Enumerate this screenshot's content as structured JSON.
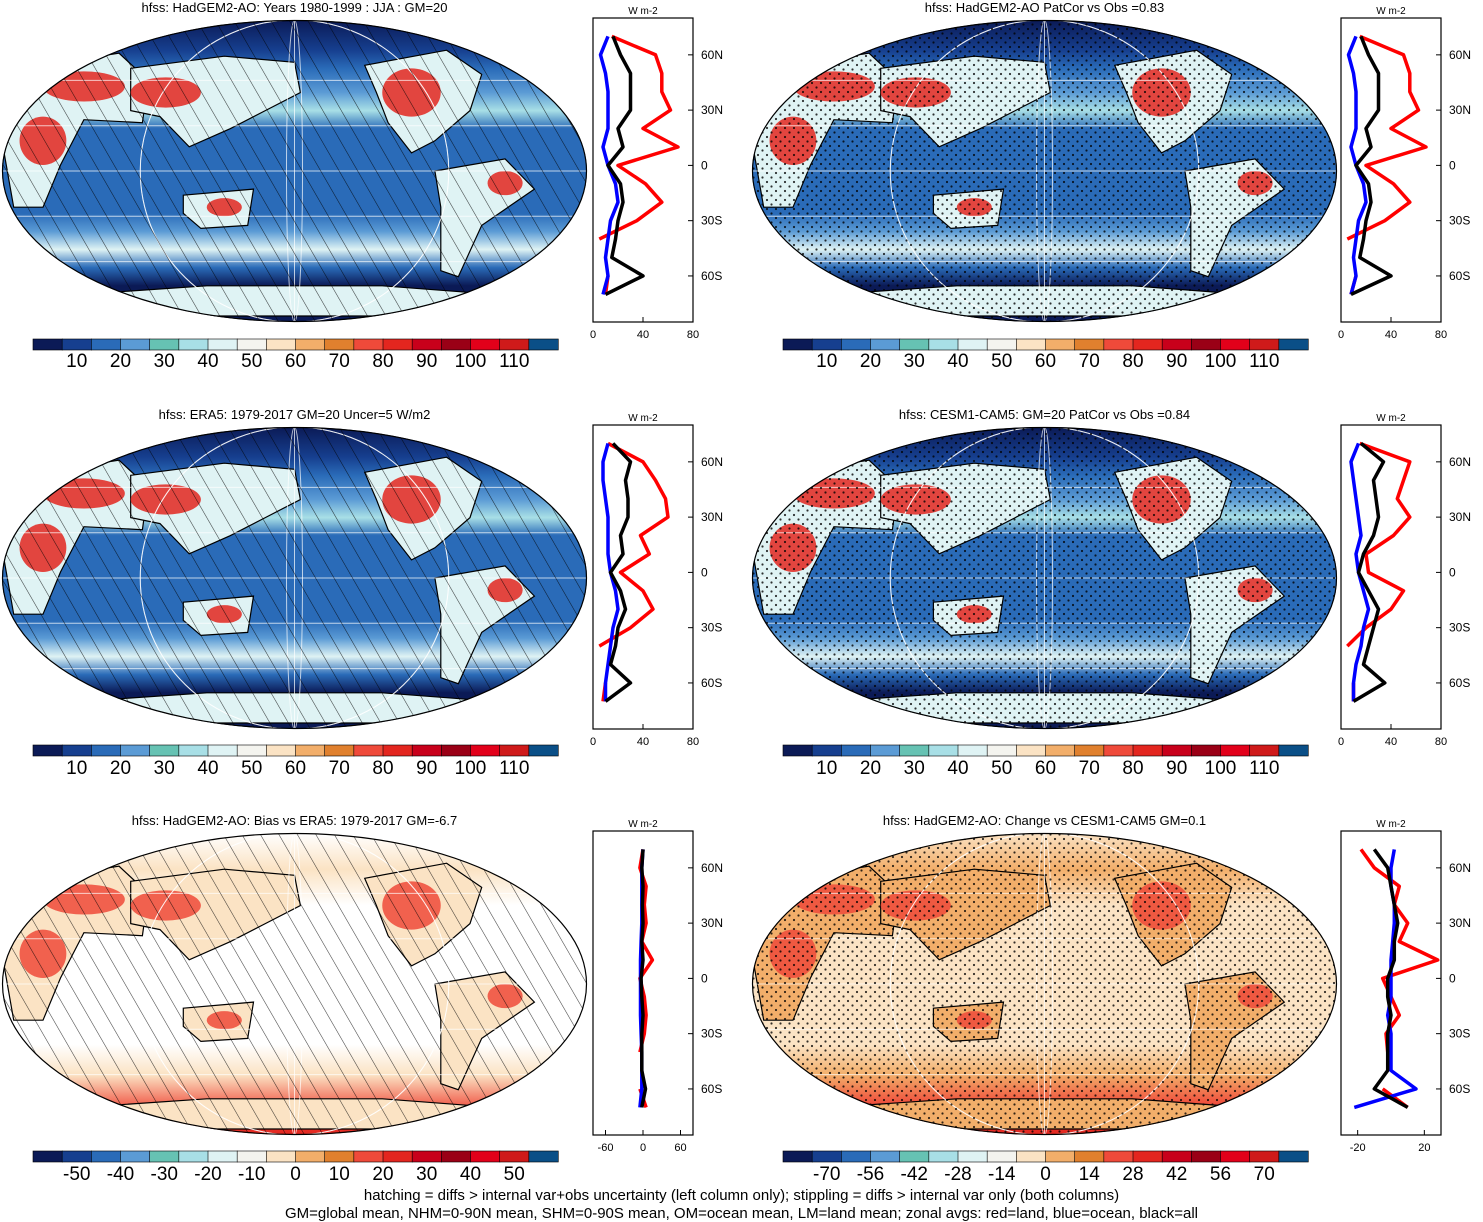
{
  "colors": {
    "abs_scale": [
      "#0b1a56",
      "#163f8f",
      "#2a6bb8",
      "#5b9bd5",
      "#66c2b3",
      "#a8dfe6",
      "#dff3f4",
      "#f4f4ef",
      "#fbe3c4",
      "#f2ae6a",
      "#e0802e",
      "#ef4a3a",
      "#e3261f",
      "#c8001b",
      "#9a0016",
      "#e2001a",
      "#cf1a1a",
      "#0a4f87"
    ],
    "diff_scale": [
      "#0b1a56",
      "#163f8f",
      "#2a6bb8",
      "#5b9bd5",
      "#66c2b3",
      "#a8dfe6",
      "#dff3f4",
      "#f4f4ef",
      "#fbe3c4",
      "#f2ae6a",
      "#e0802e",
      "#ef4a3a",
      "#e3261f",
      "#c8001b",
      "#9a0016",
      "#e2001a",
      "#cf1a1a",
      "#0a4f87"
    ],
    "land_line": "#ff0000",
    "ocean_line": "#0000ff",
    "all_line": "#000000"
  },
  "chart_data": [
    {
      "type": "map",
      "title": "hfss: HadGEM2-AO: Years 1980-1999 : JJA : GM=20",
      "colorbar": {
        "labels": [
          "10",
          "20",
          "30",
          "40",
          "50",
          "60",
          "70",
          "80",
          "90",
          "100",
          "110"
        ]
      },
      "zonal": {
        "unit": "W m-2",
        "x_ticks": [
          "0",
          "40",
          "80"
        ],
        "xlim": [
          0,
          80
        ],
        "y_ticks": [
          "60N",
          "30N",
          "0",
          "30S",
          "60S"
        ],
        "lat": [
          -80,
          -70,
          -60,
          -50,
          -40,
          -30,
          -20,
          -10,
          0,
          10,
          20,
          30,
          40,
          50,
          60,
          70,
          80
        ],
        "land": [
          null,
          10,
          12,
          null,
          5,
          35,
          55,
          42,
          20,
          68,
          40,
          62,
          55,
          55,
          50,
          15,
          null
        ],
        "ocean": [
          null,
          8,
          12,
          10,
          12,
          14,
          20,
          18,
          12,
          8,
          12,
          12,
          12,
          10,
          6,
          12,
          null
        ],
        "all": [
          null,
          10,
          40,
          15,
          18,
          20,
          24,
          22,
          12,
          24,
          20,
          30,
          30,
          30,
          22,
          16,
          null
        ]
      }
    },
    {
      "type": "map",
      "title": "hfss: HadGEM2-AO PatCor vs Obs =0.83",
      "colorbar": {
        "labels": [
          "10",
          "20",
          "30",
          "40",
          "50",
          "60",
          "70",
          "80",
          "90",
          "100",
          "110"
        ]
      },
      "zonal": {
        "unit": "W m-2",
        "x_ticks": [
          "0",
          "40",
          "80"
        ],
        "xlim": [
          0,
          80
        ],
        "y_ticks": [
          "60N",
          "30N",
          "0",
          "30S",
          "60S"
        ],
        "lat": [
          -80,
          -70,
          -60,
          -50,
          -40,
          -30,
          -20,
          -10,
          0,
          10,
          20,
          30,
          40,
          50,
          60,
          70,
          80
        ],
        "land": [
          null,
          8,
          12,
          null,
          5,
          35,
          55,
          42,
          20,
          68,
          40,
          62,
          55,
          55,
          50,
          15,
          null
        ],
        "ocean": [
          null,
          8,
          12,
          10,
          12,
          14,
          20,
          18,
          12,
          8,
          12,
          12,
          12,
          10,
          6,
          12,
          null
        ],
        "all": [
          null,
          8,
          40,
          15,
          18,
          20,
          24,
          22,
          12,
          24,
          20,
          30,
          30,
          30,
          22,
          16,
          null
        ]
      }
    },
    {
      "type": "map",
      "title": "hfss: ERA5: 1979-2017 GM=20 Uncer=5 W/m2",
      "colorbar": {
        "labels": [
          "10",
          "20",
          "30",
          "40",
          "50",
          "60",
          "70",
          "80",
          "90",
          "100",
          "110"
        ]
      },
      "zonal": {
        "unit": "W m-2",
        "x_ticks": [
          "0",
          "40",
          "80"
        ],
        "xlim": [
          0,
          80
        ],
        "y_ticks": [
          "60N",
          "30N",
          "0",
          "30S",
          "60S"
        ],
        "lat": [
          -80,
          -70,
          -60,
          -50,
          -40,
          -30,
          -20,
          -10,
          0,
          10,
          20,
          30,
          40,
          50,
          60,
          70,
          80
        ],
        "land": [
          null,
          8,
          10,
          null,
          5,
          30,
          48,
          40,
          22,
          45,
          38,
          60,
          58,
          50,
          40,
          12,
          null
        ],
        "ocean": [
          null,
          10,
          10,
          12,
          14,
          16,
          20,
          18,
          14,
          12,
          12,
          12,
          10,
          8,
          8,
          12,
          null
        ],
        "all": [
          null,
          10,
          30,
          14,
          18,
          20,
          26,
          22,
          14,
          24,
          22,
          28,
          28,
          26,
          30,
          16,
          null
        ]
      }
    },
    {
      "type": "map",
      "title": "hfss: CESM1-CAM5: GM=20 PatCor vs Obs =0.84",
      "colorbar": {
        "labels": [
          "10",
          "20",
          "30",
          "40",
          "50",
          "60",
          "70",
          "80",
          "90",
          "100",
          "110"
        ]
      },
      "zonal": {
        "unit": "W m-2",
        "x_ticks": [
          "0",
          "40",
          "80"
        ],
        "xlim": [
          0,
          80
        ],
        "y_ticks": [
          "60N",
          "30N",
          "0",
          "30S",
          "60S"
        ],
        "lat": [
          -80,
          -70,
          -60,
          -50,
          -40,
          -30,
          -20,
          -10,
          0,
          10,
          20,
          30,
          40,
          50,
          60,
          70,
          80
        ],
        "land": [
          null,
          10,
          10,
          null,
          5,
          20,
          40,
          50,
          22,
          20,
          42,
          55,
          45,
          50,
          55,
          15,
          null
        ],
        "ocean": [
          null,
          10,
          10,
          12,
          16,
          18,
          22,
          18,
          14,
          12,
          16,
          14,
          12,
          10,
          8,
          14,
          null
        ],
        "all": [
          null,
          10,
          35,
          18,
          22,
          26,
          30,
          22,
          14,
          18,
          26,
          30,
          28,
          26,
          34,
          16,
          null
        ]
      }
    },
    {
      "type": "map",
      "title": "hfss: HadGEM2-AO: Bias vs ERA5: 1979-2017 GM=-6.7",
      "colorbar": {
        "labels": [
          "-50",
          "-40",
          "-30",
          "-20",
          "-10",
          "0",
          "10",
          "20",
          "30",
          "40",
          "50"
        ]
      },
      "zonal": {
        "unit": "W m-2",
        "x_ticks": [
          "-60",
          "0",
          "60"
        ],
        "xlim": [
          -80,
          80
        ],
        "y_ticks": [
          "60N",
          "30N",
          "0",
          "30S",
          "60S"
        ],
        "lat": [
          -80,
          -70,
          -60,
          -50,
          -40,
          -30,
          -20,
          -10,
          0,
          10,
          20,
          30,
          40,
          50,
          60,
          70,
          80
        ],
        "land": [
          null,
          5,
          -5,
          null,
          -5,
          2,
          5,
          2,
          -5,
          15,
          -2,
          5,
          2,
          5,
          -5,
          0,
          null
        ],
        "ocean": [
          null,
          -5,
          -2,
          -2,
          -2,
          -3,
          -4,
          -4,
          -4,
          -4,
          -3,
          -2,
          -2,
          -2,
          -2,
          0,
          null
        ],
        "all": [
          null,
          -2,
          4,
          -2,
          -2,
          -2,
          0,
          -2,
          -3,
          0,
          -2,
          0,
          -1,
          0,
          -2,
          0,
          null
        ]
      }
    },
    {
      "type": "map",
      "title": "hfss: HadGEM2-AO: Change vs CESM1-CAM5 GM=0.1",
      "colorbar": {
        "labels": [
          "-70",
          "-56",
          "-42",
          "-28",
          "-14",
          "0",
          "14",
          "28",
          "42",
          "56",
          "70"
        ]
      },
      "zonal": {
        "unit": "W m-2",
        "x_ticks": [
          "-20",
          "20"
        ],
        "xlim": [
          -30,
          30
        ],
        "y_ticks": [
          "60N",
          "30N",
          "0",
          "30S",
          "60S"
        ],
        "lat": [
          -80,
          -70,
          -60,
          -50,
          -40,
          -30,
          -20,
          -10,
          0,
          10,
          20,
          30,
          40,
          50,
          60,
          70,
          80
        ],
        "land": [
          null,
          10,
          -5,
          null,
          -2,
          -3,
          5,
          0,
          -5,
          28,
          5,
          10,
          2,
          5,
          -10,
          -18,
          null
        ],
        "ocean": [
          null,
          -22,
          15,
          0,
          0,
          0,
          -2,
          0,
          0,
          0,
          1,
          2,
          2,
          0,
          0,
          2,
          null
        ],
        "all": [
          null,
          10,
          -10,
          -2,
          -2,
          -2,
          0,
          -2,
          -2,
          2,
          2,
          4,
          2,
          0,
          -2,
          -10,
          null
        ]
      }
    }
  ],
  "footer": {
    "line1": "hatching = diffs > internal var+obs uncertainty (left column only); stippling = diffs > internal var only (both columns)",
    "line2": "GM=global mean, NHM=0-90N mean, SHM=0-90S mean, OM=ocean mean, LM=land mean; zonal avgs: red=land, blue=ocean, black=all"
  }
}
